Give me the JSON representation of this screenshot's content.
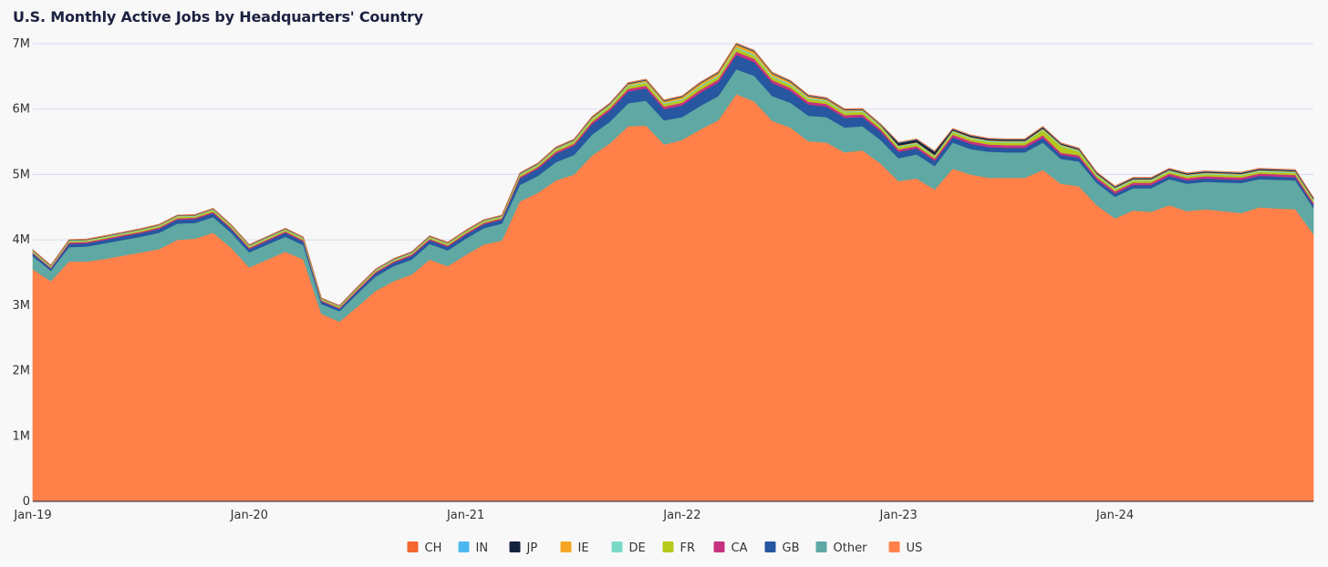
{
  "chart_data": {
    "type": "area",
    "stacked": true,
    "title": "U.S. Monthly Active Jobs by Headquarters' Country",
    "xlabel": "",
    "ylabel": "",
    "ylim": [
      0,
      7000000
    ],
    "y_ticks": [
      "0",
      "1M",
      "2M",
      "3M",
      "4M",
      "5M",
      "6M",
      "7M"
    ],
    "x_ticks": [
      "Jan-19",
      "Jan-20",
      "Jan-21",
      "Jan-22",
      "Jan-23",
      "Jan-24"
    ],
    "x_start": "Jan-19",
    "x_end": "Dec-24",
    "grid": true,
    "legend_position": "bottom",
    "legend": [
      "CH",
      "IN",
      "JP",
      "IE",
      "DE",
      "FR",
      "CA",
      "GB",
      "Other",
      "US"
    ],
    "series": [
      {
        "name": "US",
        "color": "#ff8149",
        "values": [
          3550000,
          3370000,
          3670000,
          3670000,
          3710000,
          3760000,
          3810000,
          3860000,
          4000000,
          4020000,
          4110000,
          3880000,
          3580000,
          3700000,
          3820000,
          3700000,
          2870000,
          2750000,
          2980000,
          3220000,
          3370000,
          3470000,
          3700000,
          3600000,
          3770000,
          3930000,
          3990000,
          4590000,
          4720000,
          4910000,
          5000000,
          5290000,
          5480000,
          5740000,
          5750000,
          5460000,
          5530000,
          5690000,
          5830000,
          6230000,
          6120000,
          5820000,
          5720000,
          5510000,
          5490000,
          5340000,
          5370000,
          5170000,
          4900000,
          4940000,
          4770000,
          5090000,
          5000000,
          4950000,
          4950000,
          4950000,
          5070000,
          4860000,
          4820000,
          4530000,
          4330000,
          4450000,
          4430000,
          4530000,
          4440000,
          4470000,
          4440000,
          4410000,
          4500000,
          4480000,
          4470000,
          4090000
        ]
      },
      {
        "name": "Other",
        "color": "#5fa8a3",
        "values": [
          200000,
          160000,
          220000,
          230000,
          240000,
          240000,
          240000,
          250000,
          250000,
          240000,
          240000,
          230000,
          230000,
          230000,
          230000,
          220000,
          150000,
          160000,
          200000,
          220000,
          230000,
          230000,
          240000,
          240000,
          250000,
          250000,
          260000,
          250000,
          260000,
          280000,
          300000,
          320000,
          330000,
          350000,
          380000,
          370000,
          350000,
          360000,
          370000,
          380000,
          390000,
          380000,
          380000,
          390000,
          390000,
          380000,
          370000,
          360000,
          350000,
          370000,
          360000,
          400000,
          390000,
          400000,
          390000,
          390000,
          420000,
          380000,
          380000,
          340000,
          330000,
          340000,
          360000,
          400000,
          420000,
          420000,
          440000,
          460000,
          430000,
          440000,
          440000,
          400000
        ]
      },
      {
        "name": "GB",
        "color": "#2657a0",
        "values": [
          40000,
          30000,
          50000,
          50000,
          50000,
          55000,
          55000,
          60000,
          60000,
          60000,
          60000,
          55000,
          50000,
          55000,
          60000,
          55000,
          40000,
          35000,
          40000,
          50000,
          50000,
          55000,
          55000,
          55000,
          60000,
          60000,
          60000,
          100000,
          110000,
          130000,
          140000,
          160000,
          170000,
          180000,
          190000,
          170000,
          180000,
          200000,
          210000,
          220000,
          210000,
          200000,
          180000,
          170000,
          160000,
          150000,
          140000,
          130000,
          100000,
          90000,
          80000,
          80000,
          80000,
          70000,
          70000,
          70000,
          70000,
          60000,
          60000,
          50000,
          50000,
          50000,
          50000,
          50000,
          50000,
          50000,
          50000,
          50000,
          50000,
          50000,
          50000,
          50000
        ]
      },
      {
        "name": "CA",
        "color": "#c7327f",
        "values": [
          15000,
          15000,
          20000,
          20000,
          20000,
          20000,
          20000,
          20000,
          20000,
          20000,
          20000,
          20000,
          20000,
          20000,
          20000,
          20000,
          15000,
          15000,
          20000,
          20000,
          20000,
          20000,
          20000,
          20000,
          20000,
          20000,
          20000,
          25000,
          25000,
          30000,
          30000,
          35000,
          35000,
          40000,
          40000,
          40000,
          40000,
          45000,
          45000,
          50000,
          50000,
          45000,
          45000,
          45000,
          40000,
          40000,
          40000,
          35000,
          35000,
          35000,
          35000,
          40000,
          40000,
          40000,
          40000,
          40000,
          40000,
          35000,
          35000,
          35000,
          35000,
          35000,
          35000,
          35000,
          35000,
          35000,
          35000,
          35000,
          35000,
          35000,
          35000,
          30000
        ]
      },
      {
        "name": "FR",
        "color": "#b5c81c",
        "values": [
          15000,
          10000,
          15000,
          15000,
          15000,
          15000,
          20000,
          20000,
          20000,
          20000,
          25000,
          20000,
          20000,
          20000,
          20000,
          20000,
          15000,
          15000,
          15000,
          15000,
          15000,
          15000,
          20000,
          20000,
          20000,
          20000,
          20000,
          25000,
          25000,
          30000,
          30000,
          35000,
          35000,
          40000,
          40000,
          40000,
          40000,
          45000,
          45000,
          50000,
          50000,
          45000,
          45000,
          40000,
          40000,
          40000,
          40000,
          35000,
          35000,
          35000,
          30000,
          40000,
          40000,
          40000,
          40000,
          40000,
          80000,
          100000,
          60000,
          30000,
          30000,
          30000,
          30000,
          30000,
          30000,
          30000,
          30000,
          30000,
          30000,
          30000,
          30000,
          30000
        ]
      },
      {
        "name": "DE",
        "color": "#7ad9c6",
        "values": [
          10000,
          10000,
          10000,
          10000,
          10000,
          10000,
          10000,
          10000,
          10000,
          10000,
          10000,
          10000,
          10000,
          10000,
          10000,
          10000,
          8000,
          8000,
          10000,
          10000,
          10000,
          10000,
          10000,
          10000,
          10000,
          10000,
          10000,
          12000,
          12000,
          14000,
          14000,
          15000,
          15000,
          16000,
          16000,
          16000,
          16000,
          18000,
          18000,
          20000,
          20000,
          18000,
          18000,
          18000,
          16000,
          16000,
          16000,
          15000,
          15000,
          15000,
          15000,
          15000,
          15000,
          15000,
          15000,
          15000,
          15000,
          15000,
          15000,
          15000,
          15000,
          15000,
          15000,
          15000,
          15000,
          15000,
          15000,
          15000,
          15000,
          15000,
          15000,
          15000
        ]
      },
      {
        "name": "IE",
        "color": "#f6a623",
        "values": [
          8000,
          8000,
          8000,
          8000,
          8000,
          8000,
          8000,
          8000,
          8000,
          8000,
          8000,
          8000,
          8000,
          8000,
          8000,
          8000,
          6000,
          6000,
          8000,
          8000,
          8000,
          8000,
          8000,
          8000,
          8000,
          8000,
          8000,
          10000,
          10000,
          12000,
          12000,
          15000,
          15000,
          20000,
          25000,
          25000,
          30000,
          35000,
          35000,
          40000,
          40000,
          35000,
          30000,
          25000,
          20000,
          20000,
          15000,
          12000,
          10000,
          10000,
          10000,
          10000,
          10000,
          10000,
          10000,
          10000,
          10000,
          10000,
          10000,
          10000,
          10000,
          10000,
          10000,
          10000,
          10000,
          10000,
          10000,
          10000,
          10000,
          10000,
          10000,
          10000
        ]
      },
      {
        "name": "JP",
        "color": "#14223f",
        "values": [
          5000,
          5000,
          5000,
          5000,
          5000,
          5000,
          5000,
          5000,
          5000,
          5000,
          5000,
          5000,
          5000,
          5000,
          5000,
          5000,
          4000,
          4000,
          5000,
          5000,
          5000,
          5000,
          5000,
          5000,
          5000,
          5000,
          5000,
          6000,
          6000,
          7000,
          7000,
          8000,
          8000,
          9000,
          9000,
          9000,
          9000,
          10000,
          10000,
          10000,
          10000,
          10000,
          10000,
          10000,
          10000,
          9000,
          9000,
          9000,
          40000,
          40000,
          50000,
          20000,
          20000,
          20000,
          20000,
          20000,
          20000,
          15000,
          15000,
          15000,
          15000,
          15000,
          15000,
          15000,
          15000,
          15000,
          15000,
          15000,
          15000,
          15000,
          15000,
          15000
        ]
      },
      {
        "name": "IN",
        "color": "#4db8f0",
        "values": [
          4000,
          4000,
          4000,
          4000,
          4000,
          4000,
          4000,
          4000,
          4000,
          4000,
          4000,
          4000,
          4000,
          4000,
          4000,
          4000,
          3000,
          3000,
          4000,
          4000,
          4000,
          4000,
          4000,
          4000,
          4000,
          4000,
          4000,
          5000,
          5000,
          5000,
          5000,
          6000,
          6000,
          6000,
          6000,
          6000,
          6000,
          7000,
          7000,
          7000,
          7000,
          7000,
          7000,
          7000,
          7000,
          6000,
          6000,
          6000,
          6000,
          6000,
          6000,
          6000,
          6000,
          6000,
          6000,
          6000,
          6000,
          6000,
          6000,
          6000,
          6000,
          6000,
          6000,
          6000,
          6000,
          6000,
          6000,
          6000,
          6000,
          6000,
          6000,
          6000
        ]
      },
      {
        "name": "CH",
        "color": "#f4662d",
        "values": [
          3000,
          3000,
          3000,
          3000,
          3000,
          3000,
          3000,
          3000,
          3000,
          3000,
          3000,
          3000,
          3000,
          3000,
          3000,
          3000,
          2000,
          2000,
          3000,
          3000,
          3000,
          3000,
          3000,
          3000,
          3000,
          3000,
          3000,
          4000,
          4000,
          4000,
          4000,
          4000,
          4000,
          5000,
          5000,
          5000,
          5000,
          5000,
          5000,
          5000,
          5000,
          5000,
          5000,
          5000,
          5000,
          5000,
          5000,
          5000,
          5000,
          5000,
          5000,
          5000,
          5000,
          5000,
          5000,
          5000,
          5000,
          5000,
          5000,
          5000,
          5000,
          5000,
          5000,
          5000,
          5000,
          5000,
          5000,
          5000,
          5000,
          5000,
          5000,
          5000
        ]
      }
    ]
  }
}
